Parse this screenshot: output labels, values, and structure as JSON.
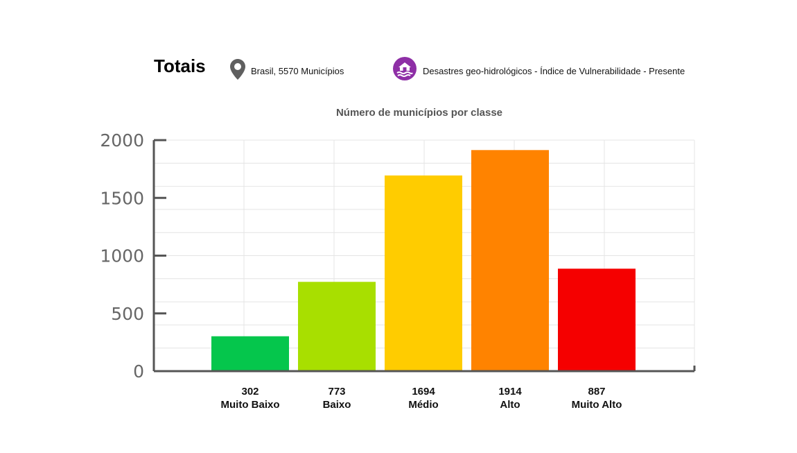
{
  "header": {
    "title": "Totais",
    "location_icon": "map-pin-icon",
    "location_label": "Brasil, 5570 Municípios",
    "hazard_icon": "flood-house-icon",
    "hazard_label": "Desastres geo-hidrológicos - Índice de Vulnerabilidade - Presente"
  },
  "colors": {
    "pin": "#5f5f5f",
    "badge": "#8e2fa6",
    "axis": "#555555",
    "grid": "#e4e4e4"
  },
  "chart_data": {
    "type": "bar",
    "title": "Número de municípios por classe",
    "xlabel": "",
    "ylabel": "",
    "ylim": [
      0,
      2000
    ],
    "yticks": [
      "0",
      "500",
      "1000",
      "1500",
      "2000"
    ],
    "grid": true,
    "legend": "none",
    "categories": [
      "Muito Baixo",
      "Baixo",
      "Médio",
      "Alto",
      "Muito Alto"
    ],
    "values": [
      302,
      773,
      1694,
      1914,
      887
    ],
    "value_labels": [
      "302",
      "773",
      "1694",
      "1914",
      "887"
    ],
    "colors": [
      "#05c64c",
      "#a8df00",
      "#ffcc00",
      "#ff8300",
      "#f50000"
    ]
  }
}
